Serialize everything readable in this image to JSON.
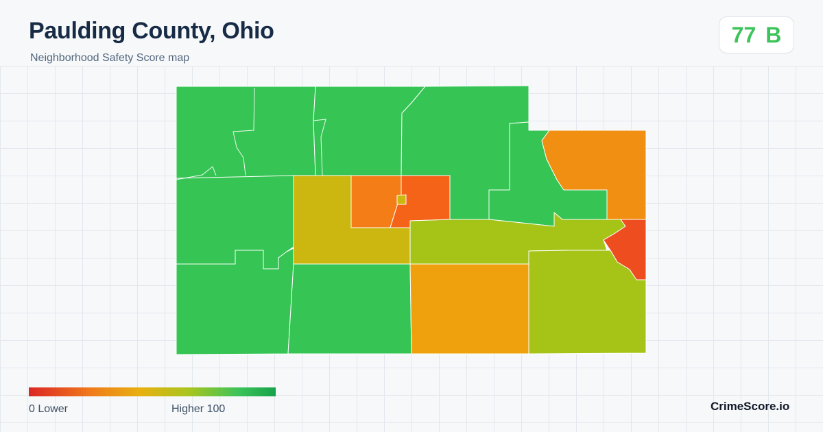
{
  "header": {
    "title": "Paulding County, Ohio",
    "subtitle": "Neighborhood Safety Score map"
  },
  "score_badge": {
    "score": "77",
    "grade": "B",
    "color": "#3cc35a"
  },
  "legend": {
    "low_label": "0  Lower",
    "high_label": "Higher  100",
    "min": 0,
    "max": 100
  },
  "brand": {
    "label": "CrimeScore.io"
  },
  "map": {
    "colors": {
      "highest": "#36c554",
      "high_mid": "#a6c418",
      "mid": "#cbb70f",
      "mid_low": "#eea10c",
      "low_mid": "#f08f12",
      "low": "#f57d17",
      "lower": "#f46318",
      "lowest": "#ee4d1f"
    }
  }
}
